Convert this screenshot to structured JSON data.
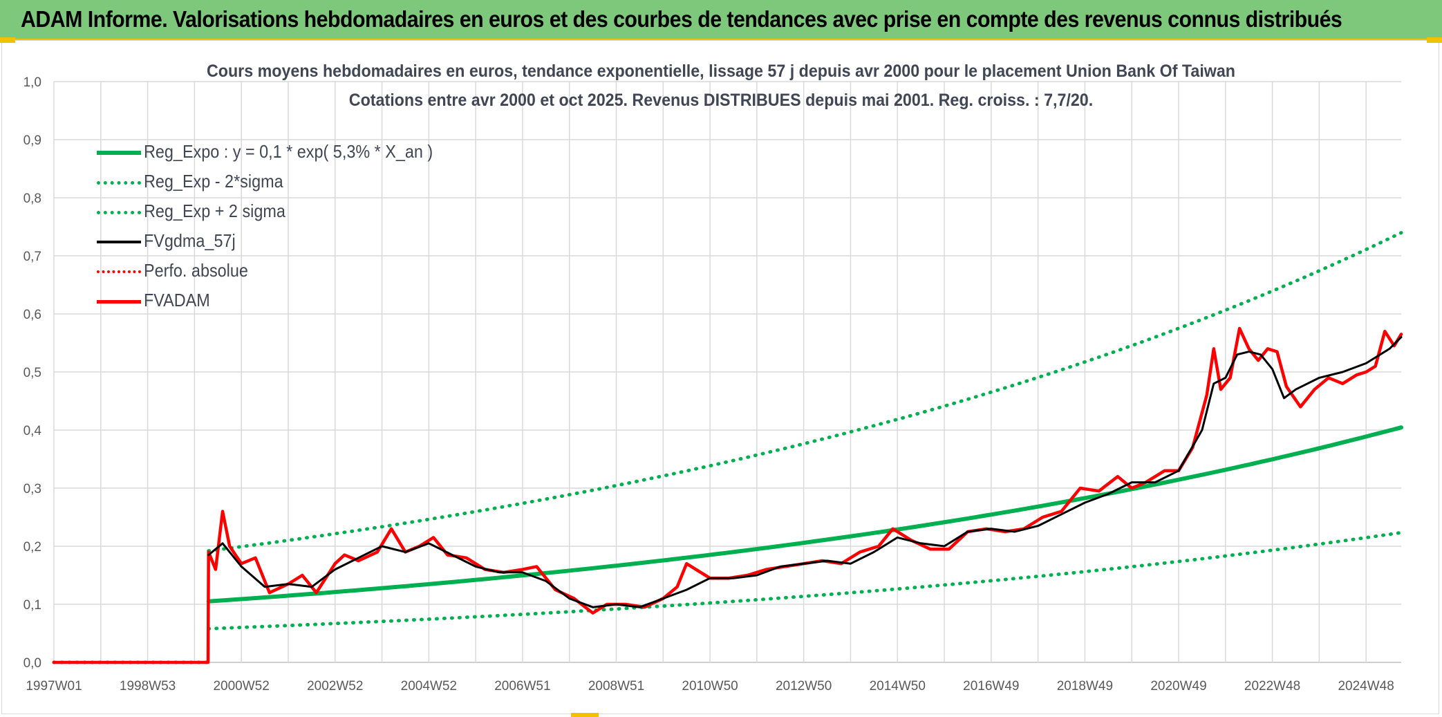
{
  "header": {
    "title": "ADAM Informe. Valorisations hebdomadaires en euros et des courbes de tendances avec prise en compte des revenus connus distribués"
  },
  "chart_data": {
    "type": "line",
    "title": "Cours moyens hebdomadaires en euros, tendance exponentielle, lissage 57 j depuis avr 2000 pour le placement Union Bank Of Taiwan",
    "subtitle": "Cotations entre avr 2000 et oct 2025. Revenus DISTRIBUES depuis mai 2001. Reg. croiss. : 7,7/20.",
    "xlabel": "",
    "ylabel": "",
    "ylim": [
      0,
      1.0
    ],
    "xlim": [
      1997.0,
      2025.75
    ],
    "grid": true,
    "legend_position": "top-left",
    "y_ticks": [
      "0,0",
      "0,1",
      "0,2",
      "0,3",
      "0,4",
      "0,5",
      "0,6",
      "0,7",
      "0,8",
      "0,9",
      "1,0"
    ],
    "x_ticks": [
      {
        "label": "1997W01",
        "x": 1997.0
      },
      {
        "label": "1998W53",
        "x": 1999.0
      },
      {
        "label": "2000W52",
        "x": 2001.0
      },
      {
        "label": "2002W52",
        "x": 2003.0
      },
      {
        "label": "2004W52",
        "x": 2005.0
      },
      {
        "label": "2006W51",
        "x": 2007.0
      },
      {
        "label": "2008W51",
        "x": 2009.0
      },
      {
        "label": "2010W50",
        "x": 2011.0
      },
      {
        "label": "2012W50",
        "x": 2013.0
      },
      {
        "label": "2014W50",
        "x": 2015.0
      },
      {
        "label": "2016W49",
        "x": 2017.0
      },
      {
        "label": "2018W49",
        "x": 2019.0
      },
      {
        "label": "2020W49",
        "x": 2021.0
      },
      {
        "label": "2022W48",
        "x": 2023.0
      },
      {
        "label": "2024W48",
        "x": 2025.0
      }
    ],
    "series": [
      {
        "name": "Reg_Expo : y = 0,1 * exp( 5,3% *  X_an )",
        "color": "#00b050",
        "style": "solid",
        "x": [
          2000.3,
          2025.75
        ],
        "trend": {
          "a": 0.105,
          "rate": 0.053
        }
      },
      {
        "name": "Reg_Exp - 2*sigma",
        "color": "#00b050",
        "style": "dotted",
        "x": [
          2000.3,
          2025.75
        ],
        "trend": {
          "a": 0.058,
          "rate": 0.053
        }
      },
      {
        "name": "Reg_Exp + 2 sigma",
        "color": "#00b050",
        "style": "dotted",
        "x": [
          2000.3,
          2025.75
        ],
        "trend": {
          "a": 0.192,
          "rate": 0.053
        }
      },
      {
        "name": "FVgdma_57j",
        "color": "#000000",
        "style": "solid",
        "x": [
          2000.3,
          2000.6,
          2001.0,
          2001.5,
          2002.0,
          2002.5,
          2003.0,
          2003.5,
          2004.0,
          2004.5,
          2005.0,
          2005.5,
          2006.0,
          2006.5,
          2007.0,
          2007.5,
          2008.0,
          2008.5,
          2009.0,
          2009.5,
          2010.0,
          2010.5,
          2011.0,
          2011.5,
          2012.0,
          2012.5,
          2013.0,
          2013.5,
          2014.0,
          2014.5,
          2015.0,
          2015.5,
          2016.0,
          2016.5,
          2017.0,
          2017.5,
          2018.0,
          2018.5,
          2019.0,
          2019.5,
          2020.0,
          2020.5,
          2021.0,
          2021.5,
          2021.75,
          2022.0,
          2022.25,
          2022.5,
          2022.75,
          2023.0,
          2023.25,
          2023.5,
          2023.75,
          2024.0,
          2024.5,
          2025.0,
          2025.5,
          2025.75
        ],
        "values": [
          0.185,
          0.205,
          0.165,
          0.13,
          0.135,
          0.13,
          0.16,
          0.18,
          0.2,
          0.19,
          0.205,
          0.185,
          0.165,
          0.155,
          0.155,
          0.14,
          0.11,
          0.095,
          0.1,
          0.095,
          0.11,
          0.125,
          0.145,
          0.145,
          0.15,
          0.165,
          0.17,
          0.175,
          0.17,
          0.19,
          0.215,
          0.205,
          0.2,
          0.225,
          0.23,
          0.225,
          0.235,
          0.255,
          0.275,
          0.29,
          0.31,
          0.31,
          0.33,
          0.4,
          0.48,
          0.49,
          0.53,
          0.535,
          0.53,
          0.505,
          0.455,
          0.47,
          0.48,
          0.49,
          0.5,
          0.515,
          0.54,
          0.56
        ]
      },
      {
        "name": "Perfo. absolue",
        "color": "#ff0000",
        "style": "dotted",
        "x": [
          1997.0,
          2000.3
        ],
        "values": [
          0.0,
          0.0
        ]
      },
      {
        "name": "FVADAM",
        "color": "#ff0000",
        "style": "solid",
        "x": [
          1997.0,
          2000.29,
          2000.3,
          2000.45,
          2000.6,
          2000.75,
          2001.0,
          2001.3,
          2001.6,
          2002.0,
          2002.3,
          2002.6,
          2003.0,
          2003.2,
          2003.5,
          2003.9,
          2004.2,
          2004.5,
          2004.8,
          2005.1,
          2005.4,
          2005.8,
          2006.2,
          2006.6,
          2007.0,
          2007.3,
          2007.7,
          2008.1,
          2008.5,
          2008.8,
          2009.2,
          2009.6,
          2010.0,
          2010.3,
          2010.5,
          2011.0,
          2011.4,
          2011.8,
          2012.2,
          2012.6,
          2013.0,
          2013.4,
          2013.8,
          2014.2,
          2014.6,
          2014.9,
          2015.3,
          2015.7,
          2016.1,
          2016.5,
          2016.9,
          2017.3,
          2017.7,
          2018.1,
          2018.5,
          2018.9,
          2019.3,
          2019.7,
          2020.0,
          2020.3,
          2020.7,
          2021.0,
          2021.3,
          2021.6,
          2021.75,
          2021.9,
          2022.1,
          2022.3,
          2022.5,
          2022.7,
          2022.9,
          2023.1,
          2023.3,
          2023.6,
          2023.9,
          2024.2,
          2024.5,
          2024.8,
          2025.0,
          2025.2,
          2025.4,
          2025.6,
          2025.75
        ],
        "values": [
          0.0,
          0.0,
          0.19,
          0.16,
          0.26,
          0.2,
          0.17,
          0.18,
          0.12,
          0.135,
          0.15,
          0.12,
          0.17,
          0.185,
          0.175,
          0.19,
          0.23,
          0.19,
          0.2,
          0.215,
          0.185,
          0.18,
          0.16,
          0.155,
          0.16,
          0.165,
          0.125,
          0.11,
          0.085,
          0.1,
          0.1,
          0.095,
          0.11,
          0.13,
          0.17,
          0.145,
          0.145,
          0.15,
          0.16,
          0.165,
          0.17,
          0.175,
          0.17,
          0.19,
          0.2,
          0.23,
          0.21,
          0.195,
          0.195,
          0.225,
          0.23,
          0.225,
          0.23,
          0.25,
          0.26,
          0.3,
          0.295,
          0.32,
          0.3,
          0.31,
          0.33,
          0.33,
          0.37,
          0.46,
          0.54,
          0.47,
          0.49,
          0.575,
          0.54,
          0.52,
          0.54,
          0.535,
          0.475,
          0.44,
          0.47,
          0.49,
          0.48,
          0.495,
          0.5,
          0.51,
          0.57,
          0.545,
          0.565
        ]
      }
    ]
  }
}
